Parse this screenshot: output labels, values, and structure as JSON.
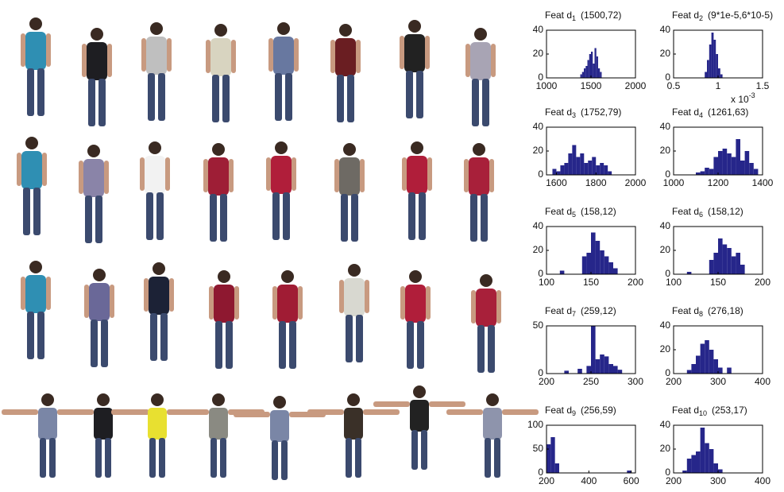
{
  "chart_data": [
    {
      "type": "histogram",
      "title": "Feat d",
      "subscript": "1",
      "annotation": "(1500,72)",
      "color": "#26268a",
      "bins": [
        1380,
        1400,
        1420,
        1440,
        1460,
        1480,
        1500,
        1520,
        1540,
        1560,
        1580,
        1600,
        1620
      ],
      "counts": [
        3,
        5,
        8,
        10,
        15,
        20,
        22,
        12,
        25,
        18,
        8,
        5
      ],
      "xlim": [
        1000,
        2000
      ],
      "xticks": [
        1000,
        1500,
        2000
      ],
      "ylim": [
        0,
        40
      ],
      "yticks": [
        0,
        20,
        40
      ]
    },
    {
      "type": "histogram",
      "title": "Feat d",
      "subscript": "2",
      "annotation": "(9*1e-5,6*10-5)",
      "color": "#26268a",
      "bins": [
        0.85,
        0.875,
        0.9,
        0.925,
        0.95,
        0.975,
        1.0,
        1.025,
        1.05
      ],
      "counts": [
        5,
        15,
        28,
        38,
        32,
        20,
        8,
        3
      ],
      "xlim": [
        0.5,
        1.5
      ],
      "xticks": [
        0.5,
        1,
        1.5
      ],
      "ylim": [
        0,
        40
      ],
      "yticks": [
        0,
        20,
        40
      ],
      "axis_multiplier": "x 10",
      "axis_multiplier_exp": "-3"
    },
    {
      "type": "histogram",
      "title": "Feat d",
      "subscript": "3",
      "annotation": "(1752,79)",
      "color": "#26268a",
      "bins": [
        1580,
        1600,
        1620,
        1640,
        1660,
        1680,
        1700,
        1720,
        1740,
        1760,
        1780,
        1800,
        1820,
        1840,
        1860,
        1880
      ],
      "counts": [
        5,
        3,
        8,
        10,
        18,
        25,
        15,
        18,
        10,
        12,
        15,
        8,
        10,
        8,
        3
      ],
      "xlim": [
        1550,
        2000
      ],
      "xticks": [
        1600,
        1800,
        2000
      ],
      "ylim": [
        0,
        40
      ],
      "yticks": [
        0,
        20,
        40
      ]
    },
    {
      "type": "histogram",
      "title": "Feat d",
      "subscript": "4",
      "annotation": "(1261,63)",
      "color": "#26268a",
      "bins": [
        1100,
        1120,
        1140,
        1160,
        1180,
        1200,
        1220,
        1240,
        1260,
        1280,
        1300,
        1320,
        1340,
        1360,
        1380
      ],
      "counts": [
        2,
        3,
        6,
        5,
        15,
        20,
        22,
        18,
        15,
        30,
        12,
        20,
        10,
        5
      ],
      "xlim": [
        1000,
        1400
      ],
      "xticks": [
        1000,
        1200,
        1400
      ],
      "ylim": [
        0,
        40
      ],
      "yticks": [
        0,
        20,
        40
      ]
    },
    {
      "type": "histogram",
      "title": "Feat d",
      "subscript": "5",
      "annotation": "(158,12)",
      "color": "#26268a",
      "bins": [
        115,
        120,
        125,
        130,
        135,
        140,
        145,
        150,
        155,
        160,
        165,
        170,
        175,
        180
      ],
      "counts": [
        3,
        0,
        0,
        0,
        0,
        15,
        18,
        35,
        28,
        20,
        15,
        10,
        5
      ],
      "xlim": [
        100,
        200
      ],
      "xticks": [
        100,
        150,
        200
      ],
      "ylim": [
        0,
        40
      ],
      "yticks": [
        0,
        20,
        40
      ]
    },
    {
      "type": "histogram",
      "title": "Feat d",
      "subscript": "6",
      "annotation": "(158,12)",
      "color": "#26268a",
      "bins": [
        115,
        120,
        125,
        130,
        135,
        140,
        145,
        150,
        155,
        160,
        165,
        170,
        175,
        180
      ],
      "counts": [
        2,
        0,
        0,
        0,
        0,
        12,
        18,
        30,
        25,
        22,
        15,
        18,
        8
      ],
      "xlim": [
        100,
        200
      ],
      "xticks": [
        100,
        150,
        200
      ],
      "ylim": [
        0,
        40
      ],
      "yticks": [
        0,
        20,
        40
      ]
    },
    {
      "type": "histogram",
      "title": "Feat d",
      "subscript": "7",
      "annotation": "(259,12)",
      "color": "#26268a",
      "bins": [
        220,
        225,
        230,
        235,
        240,
        245,
        250,
        255,
        260,
        265,
        270,
        275,
        280,
        285
      ],
      "counts": [
        3,
        0,
        0,
        5,
        0,
        8,
        50,
        15,
        20,
        18,
        10,
        8,
        4
      ],
      "xlim": [
        200,
        300
      ],
      "xticks": [
        200,
        250,
        300
      ],
      "ylim": [
        0,
        50
      ],
      "yticks": [
        0,
        50
      ]
    },
    {
      "type": "histogram",
      "title": "Feat d",
      "subscript": "8",
      "annotation": "(276,18)",
      "color": "#26268a",
      "bins": [
        230,
        240,
        250,
        260,
        270,
        280,
        290,
        300,
        310,
        320,
        330
      ],
      "counts": [
        3,
        8,
        15,
        25,
        28,
        20,
        12,
        5,
        0,
        5
      ],
      "xlim": [
        200,
        400
      ],
      "xticks": [
        200,
        300,
        400
      ],
      "ylim": [
        0,
        40
      ],
      "yticks": [
        0,
        20,
        40
      ]
    },
    {
      "type": "histogram",
      "title": "Feat d",
      "subscript": "9",
      "annotation": "(256,59)",
      "color": "#26268a",
      "bins": [
        200,
        220,
        240,
        260,
        280,
        300,
        320,
        340,
        360,
        380,
        400,
        420,
        440,
        460,
        480,
        500,
        520,
        540,
        560,
        580,
        600
      ],
      "counts": [
        60,
        75,
        20,
        0,
        0,
        0,
        0,
        0,
        0,
        0,
        0,
        0,
        0,
        0,
        0,
        0,
        0,
        0,
        0,
        5
      ],
      "xlim": [
        200,
        620
      ],
      "xticks": [
        200,
        400,
        600
      ],
      "ylim": [
        0,
        100
      ],
      "yticks": [
        0,
        50,
        100
      ]
    },
    {
      "type": "histogram",
      "title": "Feat d",
      "subscript": "10",
      "annotation": "(253,17)",
      "color": "#26268a",
      "bins": [
        220,
        230,
        240,
        250,
        260,
        270,
        280,
        290,
        300,
        310
      ],
      "counts": [
        2,
        12,
        15,
        18,
        38,
        25,
        20,
        8,
        3
      ],
      "xlim": [
        200,
        400
      ],
      "xticks": [
        200,
        300,
        400
      ],
      "ylim": [
        0,
        40
      ],
      "yticks": [
        0,
        20,
        40
      ]
    }
  ]
}
